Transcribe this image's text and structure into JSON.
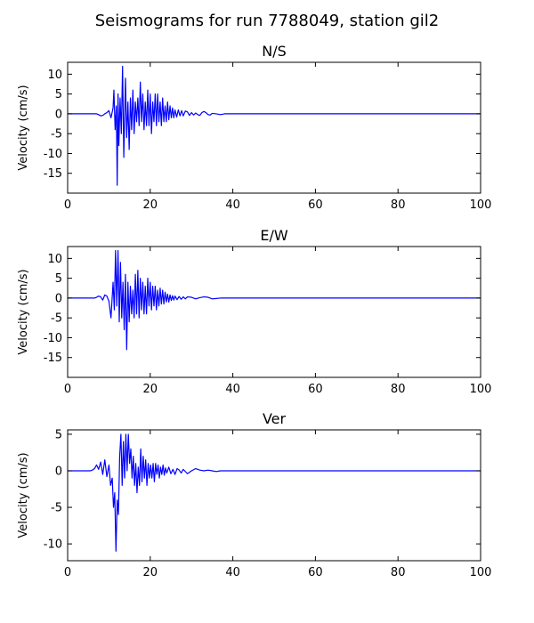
{
  "chart_data": {
    "title": "Seismograms for run 7788049, station gil2",
    "type": "line",
    "panels": [
      {
        "title": "N/S",
        "xlabel": "",
        "ylabel": "Velocity (cm/s)",
        "xlim": [
          0,
          100
        ],
        "ylim": [
          -20,
          13
        ],
        "xticks": [
          0,
          20,
          40,
          60,
          80,
          100
        ],
        "yticks": [
          -15,
          -10,
          -5,
          0,
          5,
          10
        ],
        "grid": false,
        "series": [
          {
            "color": "#0000ff",
            "x": [
              0,
              7,
              7.5,
              8,
              8.5,
              9,
              9.5,
              10,
              10.5,
              11,
              11.2,
              11.5,
              11.8,
              12,
              12.2,
              12.4,
              12.7,
              13,
              13.3,
              13.6,
              14,
              14.3,
              14.6,
              14.9,
              15.2,
              15.5,
              15.8,
              16.1,
              16.4,
              16.7,
              17,
              17.3,
              17.6,
              17.9,
              18.2,
              18.5,
              18.8,
              19.1,
              19.4,
              19.7,
              20,
              20.3,
              20.6,
              20.9,
              21.2,
              21.5,
              21.8,
              22.1,
              22.4,
              22.7,
              23,
              23.3,
              23.6,
              23.9,
              24.2,
              24.5,
              24.8,
              25.1,
              25.4,
              25.7,
              26,
              26.4,
              26.8,
              27.2,
              27.6,
              28,
              28.5,
              29,
              29.5,
              30,
              30.5,
              31,
              31.5,
              32,
              32.5,
              33,
              33.5,
              34,
              34.5,
              35,
              36,
              37,
              38,
              40,
              50,
              100
            ],
            "y": [
              0,
              0,
              -0.2,
              -0.5,
              -0.4,
              0,
              0.3,
              0.8,
              -1,
              1.5,
              6,
              -4,
              2,
              -18,
              5,
              -8,
              4,
              -5,
              12,
              -11,
              9,
              -6,
              3,
              -9,
              4,
              -4,
              6,
              -5,
              3,
              -2,
              4,
              -3,
              8,
              -2,
              5,
              -4,
              3,
              -3,
              6,
              -3,
              5,
              -5,
              3,
              -2,
              5,
              -3,
              5,
              -2,
              3,
              -3,
              4,
              -2,
              2,
              -2,
              3,
              -1.5,
              2,
              -1,
              1.5,
              -1,
              1,
              -0.8,
              1,
              -0.5,
              0.8,
              -0.5,
              0.7,
              0.5,
              -0.4,
              0.3,
              -0.3,
              0.2,
              -0.2,
              -0.4,
              0.3,
              0.6,
              0.3,
              -0.2,
              -0.3,
              0.1,
              0,
              -0.2,
              0,
              0,
              0,
              0
            ]
          }
        ]
      },
      {
        "title": "E/W",
        "xlabel": "",
        "ylabel": "Velocity (cm/s)",
        "xlim": [
          0,
          100
        ],
        "ylim": [
          -20,
          13
        ],
        "xticks": [
          0,
          20,
          40,
          60,
          80,
          100
        ],
        "yticks": [
          -15,
          -10,
          -5,
          0,
          5,
          10
        ],
        "grid": false,
        "series": [
          {
            "color": "#0000ff",
            "x": [
              0,
              6.5,
              7,
              7.5,
              8,
              8.5,
              9,
              9.5,
              10,
              10.5,
              11,
              11.3,
              11.6,
              11.9,
              12.2,
              12.5,
              12.8,
              13.1,
              13.4,
              13.7,
              14,
              14.3,
              14.6,
              14.9,
              15.2,
              15.5,
              15.8,
              16.1,
              16.4,
              16.7,
              17,
              17.3,
              17.6,
              17.9,
              18.2,
              18.5,
              18.8,
              19.1,
              19.4,
              19.7,
              20,
              20.3,
              20.6,
              20.9,
              21.2,
              21.5,
              21.8,
              22.1,
              22.4,
              22.7,
              23,
              23.3,
              23.6,
              23.9,
              24.2,
              24.5,
              24.8,
              25.1,
              25.4,
              25.7,
              26,
              26.5,
              27,
              27.5,
              28,
              28.5,
              29,
              30,
              31,
              32,
              33,
              34,
              35,
              36,
              37,
              40,
              50,
              100
            ],
            "y": [
              0,
              0,
              0.2,
              0.5,
              0.3,
              -0.5,
              0.8,
              0.5,
              -0.8,
              -5,
              4,
              -3,
              12,
              -2,
              12,
              -6,
              9,
              -5,
              4,
              -8,
              6,
              -13,
              4,
              -6,
              3,
              -4,
              2,
              -5,
              6,
              -4,
              7,
              -5,
              5,
              -3,
              4,
              -4,
              3,
              -4,
              5,
              -2,
              4,
              -3,
              3,
              -2,
              3,
              -3,
              2,
              -2,
              2.5,
              -1.5,
              2,
              -1.5,
              1.5,
              -1,
              1,
              -1,
              0.8,
              -0.6,
              0.6,
              -0.5,
              0.5,
              -0.4,
              0.4,
              -0.3,
              0.3,
              -0.2,
              0.3,
              0.2,
              -0.2,
              0.1,
              0.3,
              0.2,
              -0.2,
              -0.1,
              0,
              0,
              0,
              0
            ]
          }
        ]
      },
      {
        "title": "Ver",
        "xlabel": "",
        "ylabel": "Velocity (cm/s)",
        "xlim": [
          0,
          100
        ],
        "ylim": [
          -12.3,
          5.6
        ],
        "xticks": [
          0,
          20,
          40,
          60,
          80,
          100
        ],
        "yticks": [
          -10,
          -5,
          0,
          5
        ],
        "grid": false,
        "series": [
          {
            "color": "#0000ff",
            "x": [
              0,
              5.5,
              6,
              6.5,
              7,
              7.5,
              8,
              8.5,
              9,
              9.5,
              10,
              10.4,
              10.8,
              11.1,
              11.4,
              11.7,
              12,
              12.3,
              12.6,
              12.9,
              13.2,
              13.5,
              13.8,
              14.1,
              14.4,
              14.7,
              15,
              15.3,
              15.6,
              15.9,
              16.2,
              16.5,
              16.8,
              17.1,
              17.4,
              17.7,
              18,
              18.3,
              18.6,
              18.9,
              19.2,
              19.5,
              19.8,
              20.1,
              20.4,
              20.7,
              21,
              21.3,
              21.6,
              21.9,
              22.2,
              22.5,
              22.8,
              23.1,
              23.4,
              23.7,
              24,
              24.5,
              25,
              25.5,
              26,
              26.5,
              27,
              27.5,
              28,
              29,
              30,
              31,
              32,
              33,
              34,
              35,
              36,
              37,
              38,
              40,
              50,
              100
            ],
            "y": [
              0,
              0,
              0.1,
              0.3,
              0.8,
              0.2,
              1.2,
              -0.5,
              1.5,
              -0.8,
              0.8,
              -2,
              -1,
              -5,
              -3,
              -11,
              -4,
              -6,
              2,
              5,
              -2,
              4,
              -1,
              5,
              0,
              5,
              1,
              3,
              -1,
              2,
              -2,
              1,
              -3,
              0.5,
              -2,
              3,
              -1.5,
              2,
              -1,
              1.5,
              -2,
              1,
              -1,
              0.8,
              -1,
              1,
              -1.5,
              1,
              -0.5,
              0.8,
              -1,
              0.5,
              -0.5,
              0.8,
              -0.6,
              0.4,
              -0.3,
              0.5,
              -0.4,
              0.2,
              -0.5,
              0.3,
              0.1,
              -0.3,
              0.2,
              -0.4,
              0,
              0.3,
              0.1,
              0,
              0.1,
              0,
              -0.1,
              0,
              0,
              0,
              0,
              0
            ]
          }
        ]
      }
    ]
  }
}
